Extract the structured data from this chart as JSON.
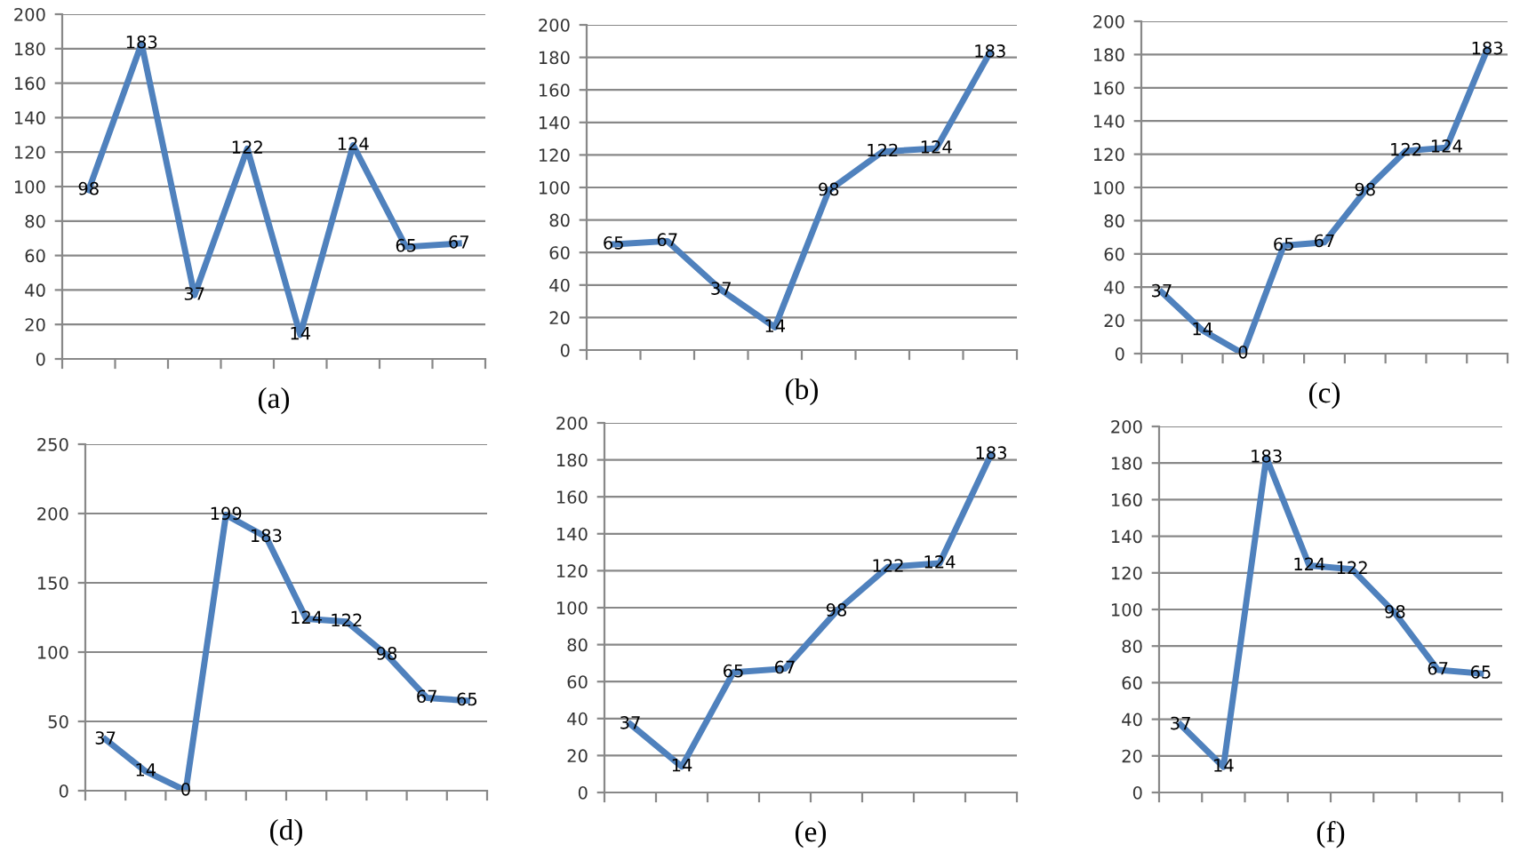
{
  "chart_data": [
    {
      "type": "line",
      "xlabel": "(a)",
      "categories": [
        null,
        null,
        null,
        null,
        null,
        null,
        null,
        null
      ],
      "series": [
        {
          "color": "#4f81bd",
          "values": [
            98,
            183,
            37,
            122,
            14,
            124,
            65,
            67
          ]
        }
      ],
      "ylim": [
        0,
        200
      ],
      "yticks": [
        0,
        20,
        40,
        60,
        80,
        100,
        120,
        140,
        160,
        180,
        200
      ],
      "grid": "y",
      "data_labels": true,
      "marker": "none",
      "line_style": "solid"
    },
    {
      "type": "line",
      "xlabel": "(b)",
      "categories": [
        null,
        null,
        null,
        null,
        null,
        null,
        null,
        null
      ],
      "series": [
        {
          "color": "#4f81bd",
          "values": [
            65,
            67,
            37,
            14,
            98,
            122,
            124,
            183
          ]
        }
      ],
      "ylim": [
        0,
        200
      ],
      "yticks": [
        0,
        20,
        40,
        60,
        80,
        100,
        120,
        140,
        160,
        180,
        200
      ],
      "grid": "y",
      "data_labels": true,
      "marker": "none",
      "line_style": "solid"
    },
    {
      "type": "line",
      "xlabel": "(c)",
      "categories": [
        null,
        null,
        null,
        null,
        null,
        null,
        null,
        null,
        null
      ],
      "series": [
        {
          "color": "#4f81bd",
          "values": [
            37,
            14,
            0,
            65,
            67,
            98,
            122,
            124,
            183
          ]
        }
      ],
      "ylim": [
        0,
        200
      ],
      "yticks": [
        0,
        20,
        40,
        60,
        80,
        100,
        120,
        140,
        160,
        180,
        200
      ],
      "grid": "y",
      "data_labels": true,
      "marker": "none",
      "line_style": "solid"
    },
    {
      "type": "line",
      "xlabel": "(d)",
      "categories": [
        null,
        null,
        null,
        null,
        null,
        null,
        null,
        null,
        null,
        null
      ],
      "series": [
        {
          "color": "#4f81bd",
          "values": [
            37,
            14,
            0,
            199,
            183,
            124,
            122,
            98,
            67,
            65
          ]
        }
      ],
      "ylim": [
        0,
        250
      ],
      "yticks": [
        0,
        50,
        100,
        150,
        200,
        250
      ],
      "grid": "y",
      "data_labels": true,
      "marker": "none",
      "line_style": "solid"
    },
    {
      "type": "line",
      "xlabel": "(e)",
      "categories": [
        null,
        null,
        null,
        null,
        null,
        null,
        null,
        null
      ],
      "series": [
        {
          "color": "#4f81bd",
          "values": [
            37,
            14,
            65,
            67,
            98,
            122,
            124,
            183
          ]
        }
      ],
      "ylim": [
        0,
        200
      ],
      "yticks": [
        0,
        20,
        40,
        60,
        80,
        100,
        120,
        140,
        160,
        180,
        200
      ],
      "grid": "y",
      "data_labels": true,
      "marker": "none",
      "line_style": "solid"
    },
    {
      "type": "line",
      "xlabel": "(f)",
      "categories": [
        null,
        null,
        null,
        null,
        null,
        null,
        null,
        null
      ],
      "series": [
        {
          "color": "#4f81bd",
          "values": [
            37,
            14,
            183,
            124,
            122,
            98,
            67,
            65
          ]
        }
      ],
      "ylim": [
        0,
        200
      ],
      "yticks": [
        0,
        20,
        40,
        60,
        80,
        100,
        120,
        140,
        160,
        180,
        200
      ],
      "grid": "y",
      "data_labels": true,
      "marker": "none",
      "line_style": "solid"
    }
  ]
}
